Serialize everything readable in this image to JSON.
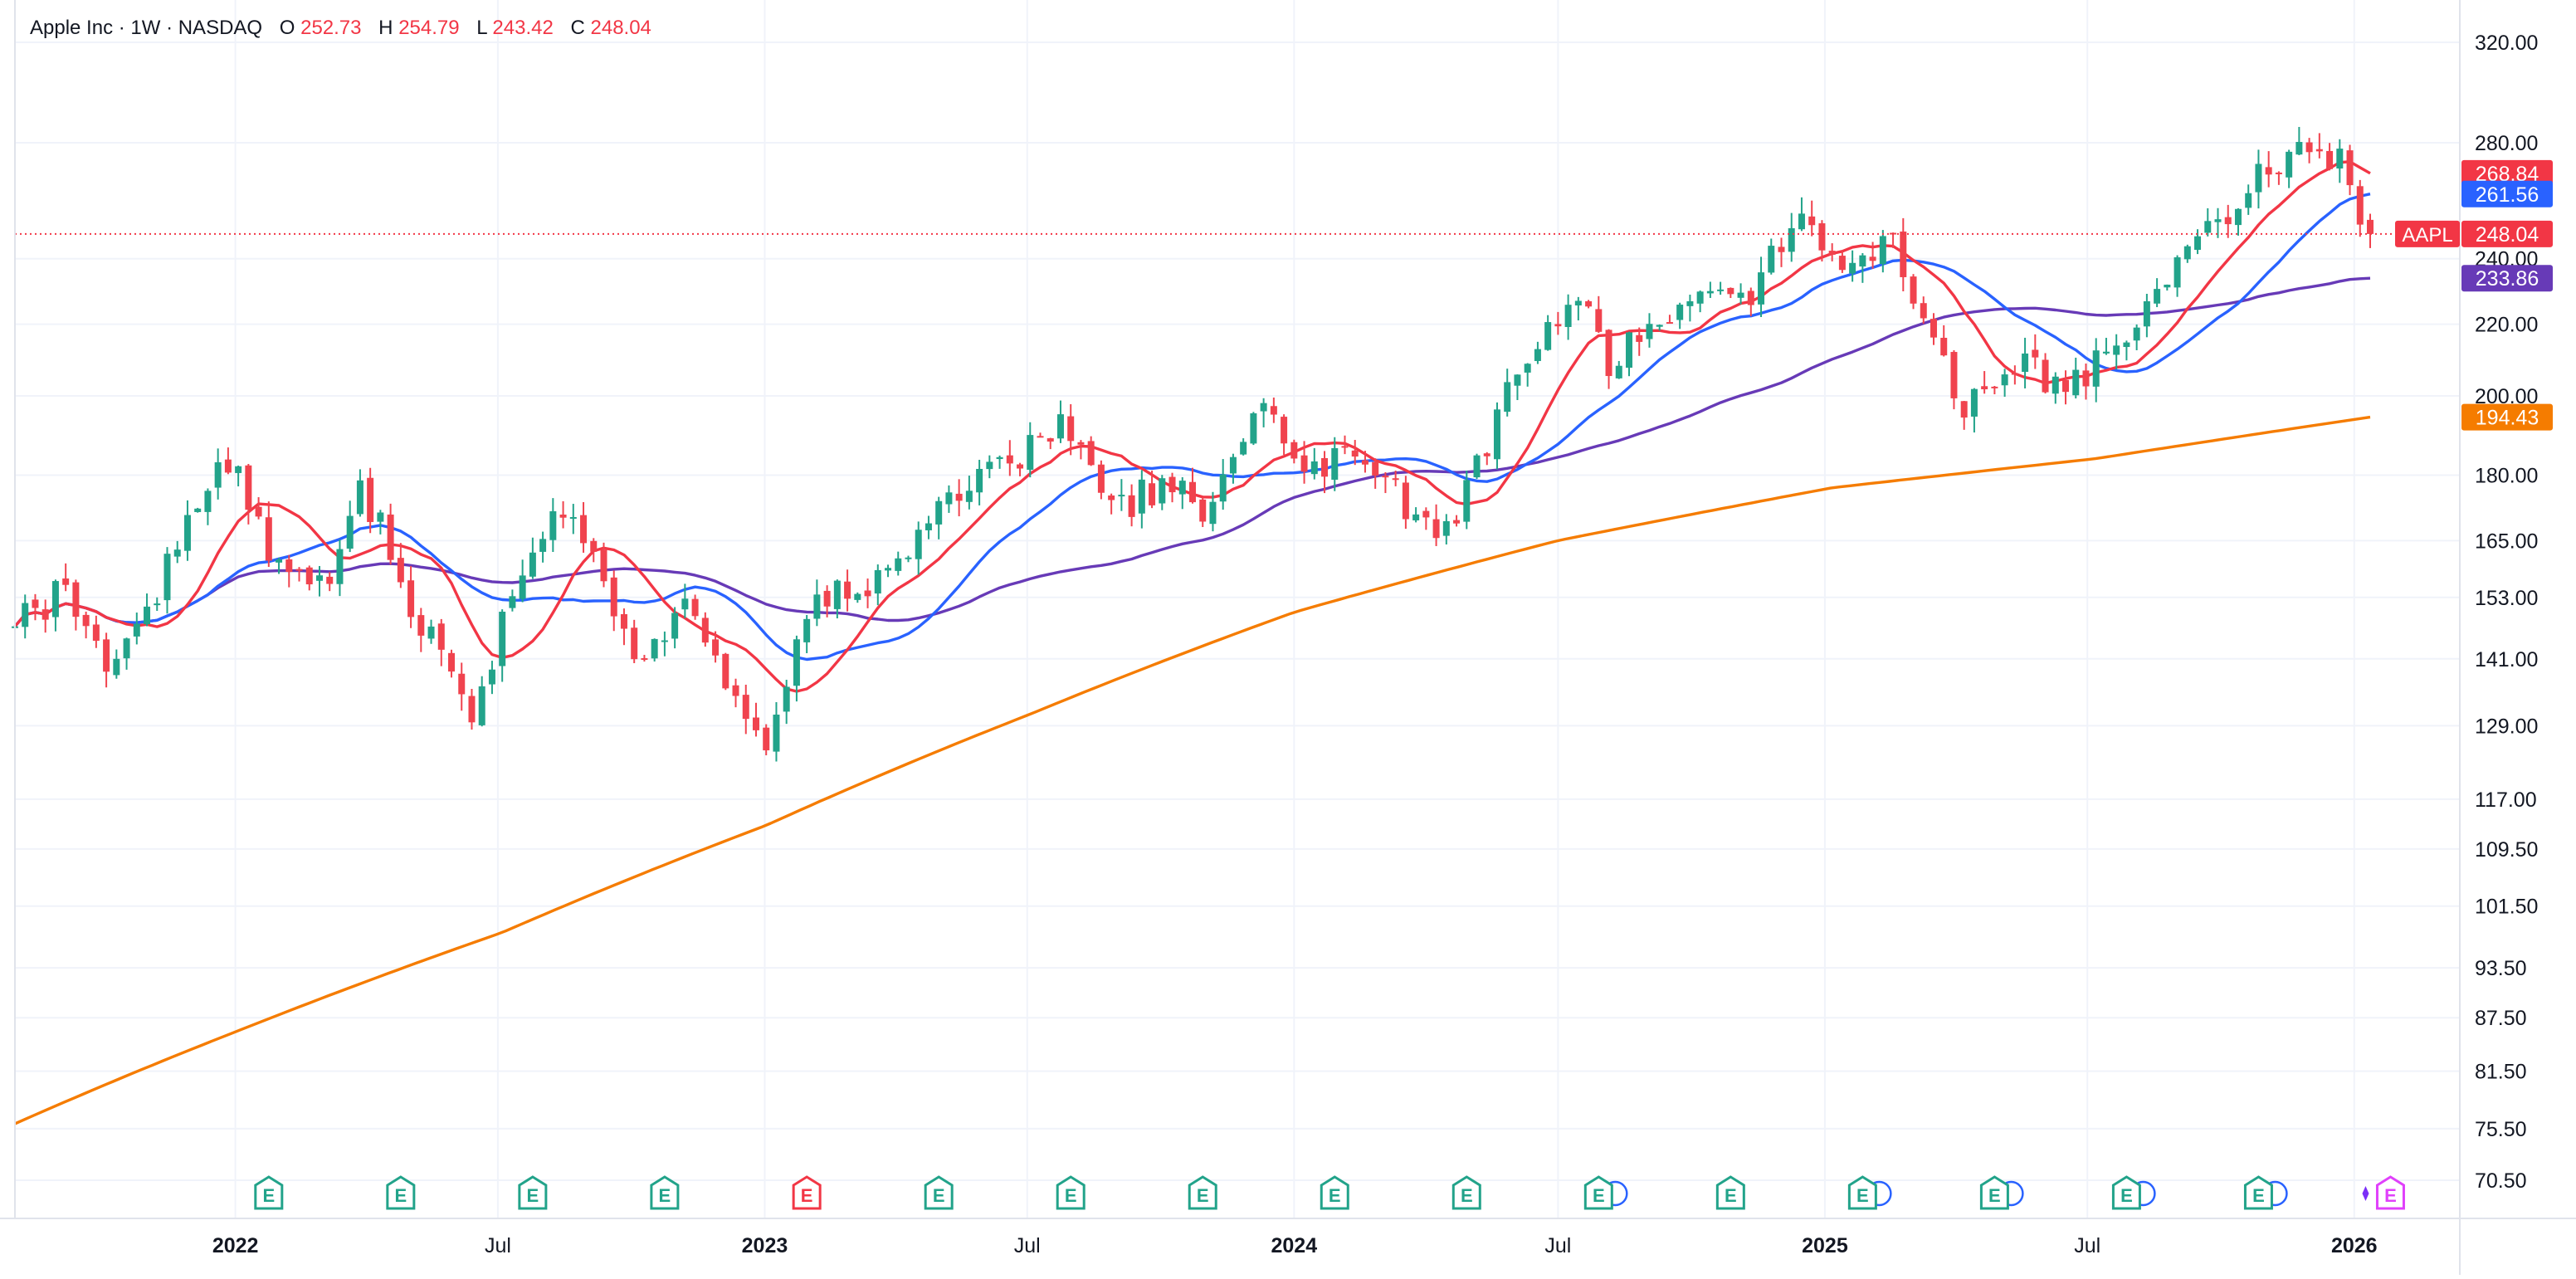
{
  "header": {
    "title": "Apple Inc · 1W · NASDAQ",
    "open_label": "O",
    "open_value": "252.73",
    "high_label": "H",
    "high_value": "254.79",
    "low_label": "L",
    "low_value": "243.42",
    "close_label": "C",
    "close_value": "248.04"
  },
  "colors": {
    "up": "#22a38a",
    "down": "#f0434e",
    "ema_red": "#f23645",
    "ema_blue": "#2962ff",
    "ema_purple": "#673ab7",
    "ema_orange": "#f57c00",
    "grid": "#f0f3fa",
    "text": "#131722",
    "axis_text": "#131722"
  },
  "last_price": {
    "symbol": "AAPL",
    "value": "248.04"
  },
  "badges": [
    {
      "value": "268.84",
      "color": "#f23645"
    },
    {
      "value": "261.56",
      "color": "#2962ff"
    },
    {
      "value": "233.86",
      "color": "#673ab7"
    },
    {
      "value": "194.43",
      "color": "#f57c00"
    }
  ],
  "chart_data": {
    "type": "candlestick",
    "timeframe": "1W",
    "y_scale": "log",
    "y_ticks": [
      "320.00",
      "280.00",
      "240.00",
      "220.00",
      "200.00",
      "180.00",
      "165.00",
      "153.00",
      "141.00",
      "129.00",
      "117.00",
      "109.50",
      "101.50",
      "93.50",
      "87.50",
      "81.50",
      "75.50",
      "70.50"
    ],
    "x_ticks": [
      {
        "label": "2022",
        "date": "2022-01-01",
        "bold": true
      },
      {
        "label": "Jul",
        "date": "2022-07-01",
        "bold": false
      },
      {
        "label": "2023",
        "date": "2023-01-01",
        "bold": true
      },
      {
        "label": "Jul",
        "date": "2023-07-01",
        "bold": false
      },
      {
        "label": "2024",
        "date": "2024-01-01",
        "bold": true
      },
      {
        "label": "Jul",
        "date": "2024-07-01",
        "bold": false
      },
      {
        "label": "2025",
        "date": "2025-01-01",
        "bold": true
      },
      {
        "label": "Jul",
        "date": "2025-07-01",
        "bold": false
      },
      {
        "label": "2026",
        "date": "2026-01-01",
        "bold": true
      }
    ],
    "price_path": [
      [
        "2021-08-02",
        147
      ],
      [
        "2021-09-06",
        155
      ],
      [
        "2021-10-04",
        141
      ],
      [
        "2021-11-01",
        150
      ],
      [
        "2021-12-13",
        180
      ],
      [
        "2022-01-03",
        182
      ],
      [
        "2022-01-24",
        160
      ],
      [
        "2022-03-07",
        155
      ],
      [
        "2022-03-28",
        178
      ],
      [
        "2022-05-09",
        147
      ],
      [
        "2022-06-13",
        132
      ],
      [
        "2022-07-04",
        147
      ],
      [
        "2022-08-15",
        172
      ],
      [
        "2022-10-03",
        142
      ],
      [
        "2022-11-07",
        150
      ],
      [
        "2022-12-19",
        131
      ],
      [
        "2023-01-02",
        126
      ],
      [
        "2023-02-06",
        154
      ],
      [
        "2023-03-13",
        155
      ],
      [
        "2023-04-10",
        165
      ],
      [
        "2023-06-05",
        180
      ],
      [
        "2023-07-24",
        193
      ],
      [
        "2023-08-21",
        178
      ],
      [
        "2023-09-11",
        174
      ],
      [
        "2023-10-09",
        178
      ],
      [
        "2023-10-30",
        172
      ],
      [
        "2023-12-11",
        195
      ],
      [
        "2024-01-01",
        185
      ],
      [
        "2024-02-19",
        182
      ],
      [
        "2024-03-25",
        171
      ],
      [
        "2024-04-15",
        166
      ],
      [
        "2024-05-06",
        183
      ],
      [
        "2024-06-10",
        212
      ],
      [
        "2024-07-15",
        232
      ],
      [
        "2024-08-05",
        210
      ],
      [
        "2024-09-09",
        222
      ],
      [
        "2024-10-14",
        230
      ],
      [
        "2024-11-04",
        226
      ],
      [
        "2024-12-16",
        255
      ],
      [
        "2025-01-06",
        237
      ],
      [
        "2025-02-17",
        244
      ],
      [
        "2025-03-10",
        217
      ],
      [
        "2025-04-07",
        198
      ],
      [
        "2025-05-12",
        210
      ],
      [
        "2025-06-16",
        201
      ],
      [
        "2025-07-14",
        211
      ],
      [
        "2025-08-11",
        228
      ],
      [
        "2025-09-15",
        245
      ],
      [
        "2025-10-13",
        260
      ],
      [
        "2025-11-03",
        272
      ],
      [
        "2025-12-01",
        282
      ],
      [
        "2025-12-22",
        272
      ],
      [
        "2026-01-12",
        248
      ]
    ],
    "last_candle": {
      "open": 252.73,
      "high": 254.79,
      "low": 243.42,
      "close": 248.04
    },
    "moving_averages": [
      {
        "key": "ma1",
        "color": "#f23645",
        "period": 10,
        "last": 268.84
      },
      {
        "key": "ma2",
        "color": "#2962ff",
        "period": 20,
        "last": 261.56
      },
      {
        "key": "ma3",
        "color": "#673ab7",
        "period": 50,
        "last": 233.86
      },
      {
        "key": "ma4",
        "color": "#f57c00",
        "period": 200,
        "last": 194.43,
        "path": [
          [
            "2021-08-02",
            76
          ],
          [
            "2022-01-03",
            86
          ],
          [
            "2022-07-04",
            98
          ],
          [
            "2023-01-02",
            113
          ],
          [
            "2023-07-03",
            131
          ],
          [
            "2024-01-01",
            150
          ],
          [
            "2024-07-01",
            165
          ],
          [
            "2025-01-06",
            177
          ],
          [
            "2025-07-07",
            184
          ],
          [
            "2026-01-12",
            194.43
          ]
        ]
      }
    ],
    "earnings_events": [
      {
        "date": "2022-01-24",
        "kind": "E",
        "status": "positive",
        "dividend": false
      },
      {
        "date": "2022-04-25",
        "kind": "E",
        "status": "positive",
        "dividend": false
      },
      {
        "date": "2022-07-25",
        "kind": "E",
        "status": "positive",
        "dividend": false
      },
      {
        "date": "2022-10-24",
        "kind": "E",
        "status": "positive",
        "dividend": false
      },
      {
        "date": "2023-01-30",
        "kind": "E",
        "status": "negative",
        "dividend": false
      },
      {
        "date": "2023-05-01",
        "kind": "E",
        "status": "positive",
        "dividend": false
      },
      {
        "date": "2023-07-31",
        "kind": "E",
        "status": "positive",
        "dividend": false
      },
      {
        "date": "2023-10-30",
        "kind": "E",
        "status": "positive",
        "dividend": false
      },
      {
        "date": "2024-01-29",
        "kind": "E",
        "status": "positive",
        "dividend": false
      },
      {
        "date": "2024-04-29",
        "kind": "E",
        "status": "positive",
        "dividend": false
      },
      {
        "date": "2024-07-29",
        "kind": "E",
        "status": "positive",
        "dividend": true
      },
      {
        "date": "2024-10-28",
        "kind": "E",
        "status": "positive",
        "dividend": false
      },
      {
        "date": "2025-01-27",
        "kind": "E",
        "status": "positive",
        "dividend": true
      },
      {
        "date": "2025-04-28",
        "kind": "E",
        "status": "positive",
        "dividend": true
      },
      {
        "date": "2025-07-28",
        "kind": "E",
        "status": "positive",
        "dividend": true
      },
      {
        "date": "2025-10-27",
        "kind": "E",
        "status": "positive",
        "dividend": true
      },
      {
        "date": "2026-01-26",
        "kind": "E",
        "status": "upcoming",
        "dividend": false
      }
    ]
  }
}
